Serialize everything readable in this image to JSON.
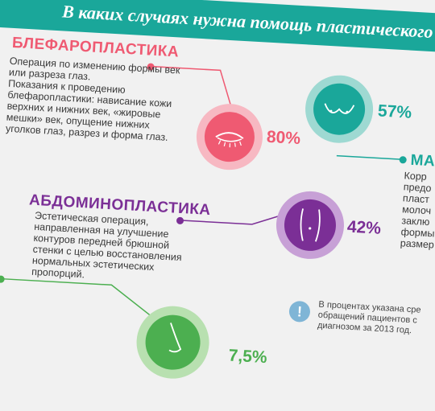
{
  "header": {
    "title": "В  каких случаях нужна помощь пластического хирург"
  },
  "blepharo": {
    "title": "БЛЕФАРОПЛАСТИКА",
    "desc": [
      "Операция по изменению формы век",
      "или  разреза глаз.",
      "Показания к проведению",
      "блефаропластики: нависание кожи",
      "верхних и нижних век, «жировые",
      "мешки» век, опущение нижних",
      "уголков глаз, разрез и форма глаз."
    ],
    "percent": "80%",
    "icon": "eye-icon",
    "color": "#ef5a72"
  },
  "mammo": {
    "title": "МА",
    "desc": [
      "Корр",
      "предо",
      "пласт",
      "молоч",
      "заклю",
      "формы",
      "размер"
    ],
    "percent": "57%",
    "icon": "breast-icon",
    "color": "#1aa79a"
  },
  "abdomino": {
    "title": "АБДОМИНОПЛАСТИКА",
    "desc": [
      "Эстетическая операция,",
      "направленная на улучшение",
      "контуров передней брюшной",
      "стенки с целью  восстановления",
      "нормальных эстетических",
      "пропорций."
    ],
    "percent": "42%",
    "icon": "abdomen-icon",
    "color": "#7b2f96"
  },
  "rhino": {
    "percent": "7,5%",
    "icon": "nose-icon",
    "color": "#4caf50"
  },
  "note": {
    "icon": "info-icon",
    "glyph": "!",
    "lines": [
      "В процентах указана сре",
      "обращений пациентов с",
      "диагнозом за 2013 год."
    ]
  }
}
